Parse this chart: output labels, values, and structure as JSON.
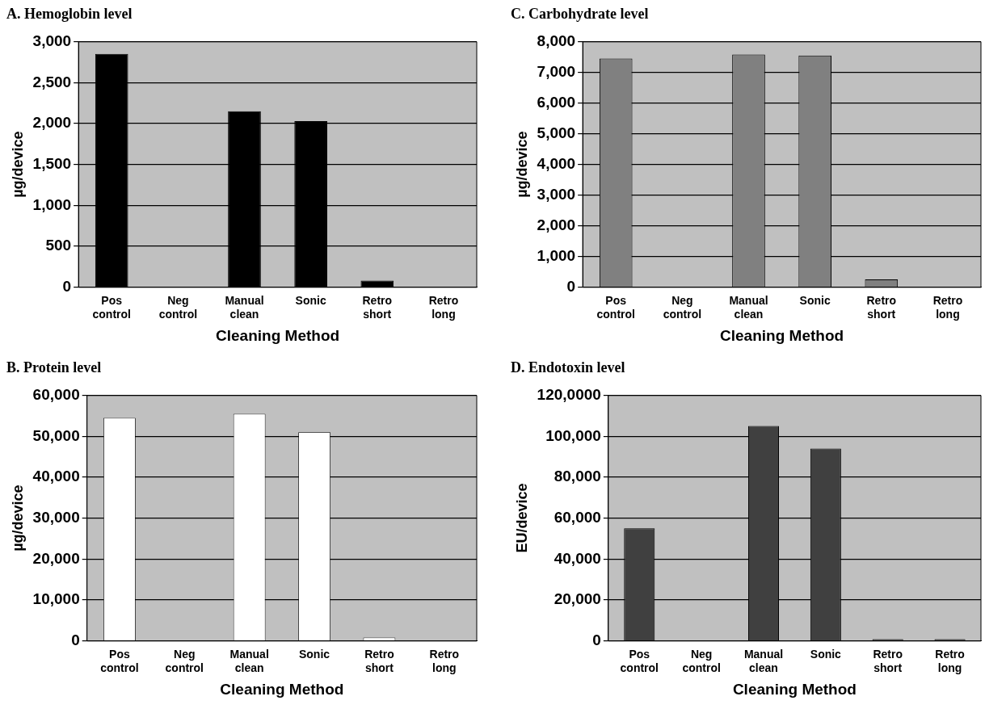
{
  "chart_data": [
    {
      "type": "bar",
      "title": "A. Hemoglobin level",
      "xlabel": "Cleaning Method",
      "ylabel": "µg/device",
      "categories": [
        "Pos control",
        "Neg control",
        "Manual clean",
        "Sonic",
        "Retro short",
        "Retro long"
      ],
      "values": [
        2850,
        0,
        2150,
        2030,
        80,
        0
      ],
      "color": "#000000",
      "ylim": [
        0,
        3000
      ],
      "yticks": [
        {
          "value": 0,
          "label": "0"
        },
        {
          "value": 500,
          "label": "500"
        },
        {
          "value": 1000,
          "label": "1,000"
        },
        {
          "value": 1500,
          "label": "1,500"
        },
        {
          "value": 2000,
          "label": "2,000"
        },
        {
          "value": 2500,
          "label": "2,500"
        },
        {
          "value": 3000,
          "label": "3,000"
        }
      ],
      "grid": "y"
    },
    {
      "type": "bar",
      "title": "C. Carbohydrate level",
      "xlabel": "Cleaning Method",
      "ylabel": "µg/device",
      "categories": [
        "Pos control",
        "Neg control",
        "Manual clean",
        "Sonic",
        "Retro short",
        "Retro long"
      ],
      "values": [
        7450,
        0,
        7580,
        7550,
        250,
        0
      ],
      "color": "#808080",
      "ylim": [
        0,
        8000
      ],
      "yticks": [
        {
          "value": 0,
          "label": "0"
        },
        {
          "value": 1000,
          "label": "1,000"
        },
        {
          "value": 2000,
          "label": "2,000"
        },
        {
          "value": 3000,
          "label": "3,000"
        },
        {
          "value": 4000,
          "label": "4,000"
        },
        {
          "value": 5000,
          "label": "5,000"
        },
        {
          "value": 6000,
          "label": "6,000"
        },
        {
          "value": 7000,
          "label": "7,000"
        },
        {
          "value": 8000,
          "label": "8,000"
        }
      ],
      "grid": "y"
    },
    {
      "type": "bar",
      "title": "B. Protein level",
      "xlabel": "Cleaning Method",
      "ylabel": "µg/device",
      "categories": [
        "Pos control",
        "Neg control",
        "Manual clean",
        "Sonic",
        "Retro short",
        "Retro long"
      ],
      "values": [
        54500,
        0,
        55500,
        51000,
        800,
        0
      ],
      "color": "#ffffff",
      "ylim": [
        0,
        60000
      ],
      "yticks": [
        {
          "value": 0,
          "label": "0"
        },
        {
          "value": 10000,
          "label": "10,000"
        },
        {
          "value": 20000,
          "label": "20,000"
        },
        {
          "value": 30000,
          "label": "30,000"
        },
        {
          "value": 40000,
          "label": "40,000"
        },
        {
          "value": 50000,
          "label": "50,000"
        },
        {
          "value": 60000,
          "label": "60,000"
        }
      ],
      "grid": "y"
    },
    {
      "type": "bar",
      "title": "D. Endotoxin level",
      "xlabel": "Cleaning Method",
      "ylabel": "EU/device",
      "categories": [
        "Pos control",
        "Neg control",
        "Manual clean",
        "Sonic",
        "Retro short",
        "Retro long"
      ],
      "values": [
        55000,
        0,
        105000,
        94000,
        800,
        800
      ],
      "color": "#404040",
      "ylim": [
        0,
        120000
      ],
      "yticks": [
        {
          "value": 0,
          "label": "0"
        },
        {
          "value": 20000,
          "label": "20,000"
        },
        {
          "value": 40000,
          "label": "40,000"
        },
        {
          "value": 60000,
          "label": "60,000"
        },
        {
          "value": 80000,
          "label": "80,000"
        },
        {
          "value": 100000,
          "label": "100,000"
        },
        {
          "value": 120000,
          "label": "120,0000"
        }
      ],
      "grid": "y"
    }
  ]
}
